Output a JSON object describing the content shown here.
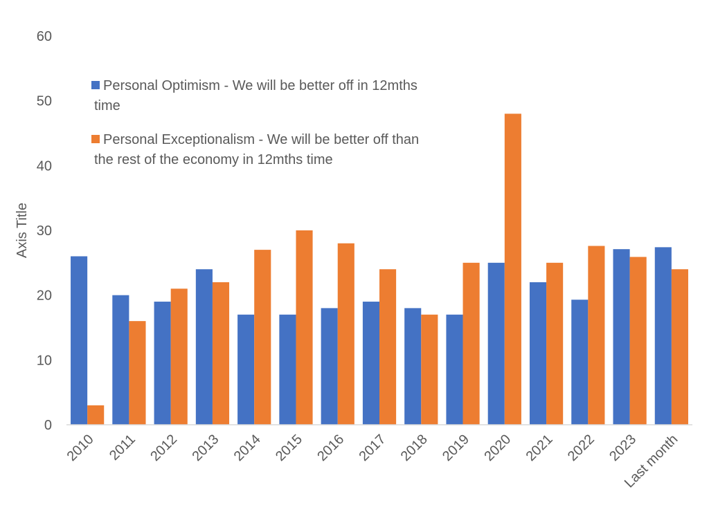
{
  "chart_data": {
    "type": "bar",
    "ylabel": "Axis Title",
    "xlabel": "",
    "ylim": [
      0,
      60
    ],
    "yticks": [
      0,
      10,
      20,
      30,
      40,
      50,
      60
    ],
    "grid": false,
    "legend_position": "top-left",
    "categories": [
      "2010",
      "2011",
      "2012",
      "2013",
      "2014",
      "2015",
      "2016",
      "2017",
      "2018",
      "2019",
      "2020",
      "2021",
      "2022",
      "2023",
      "Last month"
    ],
    "series": [
      {
        "name": "Personal Optimism - We will be better off in 12mths time",
        "legend_lines": [
          "Personal Optimism - We will be better off in 12mths",
          "time"
        ],
        "color": "#4472C4",
        "values": [
          26,
          20,
          19,
          24,
          17,
          17,
          18,
          19,
          18,
          17,
          25,
          22,
          19.3,
          27.1,
          27.4
        ]
      },
      {
        "name": "Personal Exceptionalism - We will be better off than the rest of the economy in 12mths time",
        "legend_lines": [
          "Personal Exceptionalism - We will be better off than",
          "the rest of the economy in 12mths time"
        ],
        "color": "#ED7D31",
        "values": [
          3,
          16,
          21,
          22,
          27,
          30,
          28,
          24,
          17,
          25,
          48,
          25,
          27.6,
          25.9,
          24
        ]
      }
    ]
  }
}
